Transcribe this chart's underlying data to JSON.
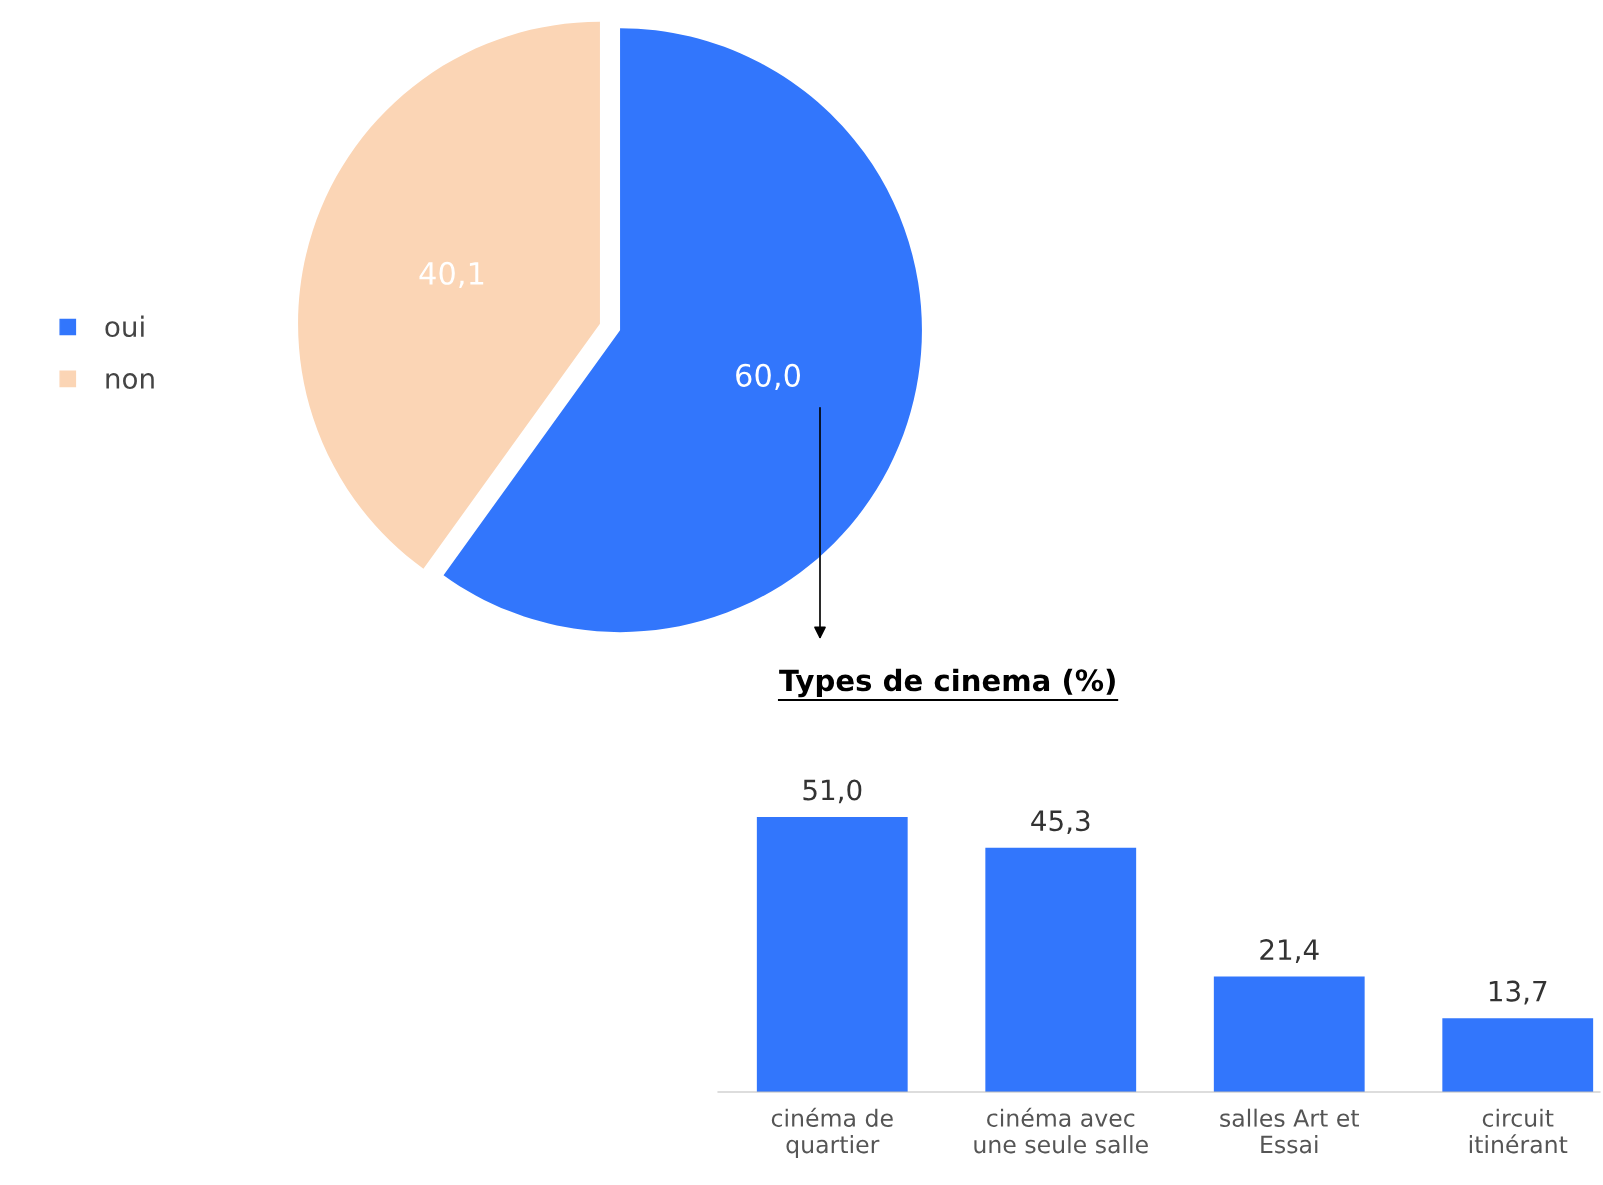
{
  "chart_data": [
    {
      "type": "pie",
      "categories": [
        "oui",
        "non"
      ],
      "values": [
        60.0,
        40.1
      ],
      "colors": [
        "#3276fc",
        "#fbd5b5"
      ],
      "value_labels": [
        "60,0",
        "40,1"
      ],
      "legend": "left"
    },
    {
      "type": "bar",
      "title": "Types de cinema (%)",
      "categories": [
        "cinéma de\nquartier",
        "cinéma avec\nune seule salle",
        "salles Art et\nEssai",
        "circuit\nitinérant"
      ],
      "values": [
        51.0,
        45.3,
        21.4,
        13.7
      ],
      "color": "#3276fc",
      "value_labels": [
        "51,0",
        "45,3",
        "21,4",
        "13,7"
      ]
    }
  ]
}
